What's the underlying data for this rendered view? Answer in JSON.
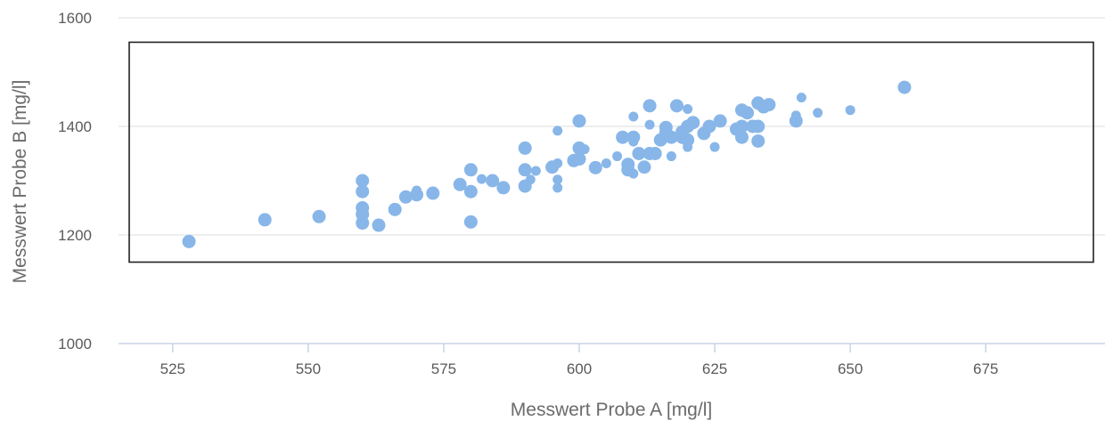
{
  "chart_data": {
    "type": "scatter",
    "title": "",
    "xlabel": "Messwert Probe A [mg/l]",
    "ylabel": "Messwert Probe B [mg/l]",
    "xlim": [
      515,
      697
    ],
    "ylim": [
      1000,
      1600
    ],
    "x_ticks": [
      525,
      550,
      575,
      600,
      625,
      650,
      675
    ],
    "y_ticks": [
      1000,
      1200,
      1400,
      1600
    ],
    "grid": "horizontal",
    "legend": "none",
    "colors": {
      "points": "#88b6e8",
      "grid": "#e3e3e3",
      "axis": "#c8d4e6",
      "box": "#222222"
    },
    "annotation_box": {
      "x": [
        515,
        697
      ],
      "y": [
        1150,
        1555
      ]
    },
    "points": [
      {
        "x": 528,
        "y": 1188,
        "size": "large"
      },
      {
        "x": 542,
        "y": 1228,
        "size": "large"
      },
      {
        "x": 552,
        "y": 1234,
        "size": "large"
      },
      {
        "x": 560,
        "y": 1300,
        "size": "large"
      },
      {
        "x": 560,
        "y": 1280,
        "size": "large"
      },
      {
        "x": 560,
        "y": 1250,
        "size": "large"
      },
      {
        "x": 560,
        "y": 1238,
        "size": "large"
      },
      {
        "x": 560,
        "y": 1222,
        "size": "large"
      },
      {
        "x": 563,
        "y": 1218,
        "size": "large"
      },
      {
        "x": 566,
        "y": 1247,
        "size": "large"
      },
      {
        "x": 568,
        "y": 1270,
        "size": "large"
      },
      {
        "x": 570,
        "y": 1274,
        "size": "large"
      },
      {
        "x": 570,
        "y": 1282,
        "size": "medium"
      },
      {
        "x": 573,
        "y": 1277,
        "size": "large"
      },
      {
        "x": 578,
        "y": 1293,
        "size": "large"
      },
      {
        "x": 580,
        "y": 1320,
        "size": "large"
      },
      {
        "x": 580,
        "y": 1280,
        "size": "large"
      },
      {
        "x": 580,
        "y": 1224,
        "size": "large"
      },
      {
        "x": 582,
        "y": 1303,
        "size": "medium"
      },
      {
        "x": 584,
        "y": 1300,
        "size": "large"
      },
      {
        "x": 586,
        "y": 1287,
        "size": "large"
      },
      {
        "x": 590,
        "y": 1360,
        "size": "large"
      },
      {
        "x": 590,
        "y": 1320,
        "size": "large"
      },
      {
        "x": 590,
        "y": 1290,
        "size": "large"
      },
      {
        "x": 591,
        "y": 1302,
        "size": "medium"
      },
      {
        "x": 592,
        "y": 1318,
        "size": "medium"
      },
      {
        "x": 595,
        "y": 1325,
        "size": "large"
      },
      {
        "x": 596,
        "y": 1392,
        "size": "medium"
      },
      {
        "x": 596,
        "y": 1332,
        "size": "medium"
      },
      {
        "x": 596,
        "y": 1302,
        "size": "medium"
      },
      {
        "x": 596,
        "y": 1287,
        "size": "medium"
      },
      {
        "x": 599,
        "y": 1337,
        "size": "large"
      },
      {
        "x": 600,
        "y": 1410,
        "size": "large"
      },
      {
        "x": 600,
        "y": 1360,
        "size": "large"
      },
      {
        "x": 600,
        "y": 1340,
        "size": "large"
      },
      {
        "x": 601,
        "y": 1358,
        "size": "medium"
      },
      {
        "x": 603,
        "y": 1324,
        "size": "large"
      },
      {
        "x": 605,
        "y": 1332,
        "size": "medium"
      },
      {
        "x": 607,
        "y": 1345,
        "size": "medium"
      },
      {
        "x": 608,
        "y": 1380,
        "size": "large"
      },
      {
        "x": 609,
        "y": 1330,
        "size": "large"
      },
      {
        "x": 609,
        "y": 1320,
        "size": "large"
      },
      {
        "x": 610,
        "y": 1418,
        "size": "medium"
      },
      {
        "x": 610,
        "y": 1380,
        "size": "large"
      },
      {
        "x": 610,
        "y": 1372,
        "size": "medium"
      },
      {
        "x": 610,
        "y": 1313,
        "size": "medium"
      },
      {
        "x": 611,
        "y": 1350,
        "size": "large"
      },
      {
        "x": 612,
        "y": 1325,
        "size": "large"
      },
      {
        "x": 613,
        "y": 1438,
        "size": "large"
      },
      {
        "x": 613,
        "y": 1403,
        "size": "medium"
      },
      {
        "x": 613,
        "y": 1350,
        "size": "large"
      },
      {
        "x": 614,
        "y": 1350,
        "size": "large"
      },
      {
        "x": 615,
        "y": 1375,
        "size": "large"
      },
      {
        "x": 616,
        "y": 1398,
        "size": "large"
      },
      {
        "x": 616,
        "y": 1388,
        "size": "large"
      },
      {
        "x": 617,
        "y": 1345,
        "size": "medium"
      },
      {
        "x": 617,
        "y": 1380,
        "size": "large"
      },
      {
        "x": 618,
        "y": 1438,
        "size": "large"
      },
      {
        "x": 619,
        "y": 1390,
        "size": "large"
      },
      {
        "x": 619,
        "y": 1380,
        "size": "large"
      },
      {
        "x": 620,
        "y": 1432,
        "size": "medium"
      },
      {
        "x": 620,
        "y": 1400,
        "size": "large"
      },
      {
        "x": 620,
        "y": 1375,
        "size": "large"
      },
      {
        "x": 620,
        "y": 1362,
        "size": "medium"
      },
      {
        "x": 621,
        "y": 1407,
        "size": "large"
      },
      {
        "x": 623,
        "y": 1387,
        "size": "large"
      },
      {
        "x": 624,
        "y": 1400,
        "size": "large"
      },
      {
        "x": 625,
        "y": 1362,
        "size": "medium"
      },
      {
        "x": 626,
        "y": 1410,
        "size": "large"
      },
      {
        "x": 629,
        "y": 1395,
        "size": "large"
      },
      {
        "x": 630,
        "y": 1430,
        "size": "large"
      },
      {
        "x": 630,
        "y": 1400,
        "size": "large"
      },
      {
        "x": 630,
        "y": 1380,
        "size": "large"
      },
      {
        "x": 631,
        "y": 1425,
        "size": "large"
      },
      {
        "x": 632,
        "y": 1400,
        "size": "large"
      },
      {
        "x": 633,
        "y": 1443,
        "size": "large"
      },
      {
        "x": 633,
        "y": 1400,
        "size": "large"
      },
      {
        "x": 633,
        "y": 1373,
        "size": "large"
      },
      {
        "x": 634,
        "y": 1436,
        "size": "large"
      },
      {
        "x": 635,
        "y": 1440,
        "size": "large"
      },
      {
        "x": 640,
        "y": 1420,
        "size": "medium"
      },
      {
        "x": 640,
        "y": 1410,
        "size": "large"
      },
      {
        "x": 641,
        "y": 1453,
        "size": "medium"
      },
      {
        "x": 644,
        "y": 1425,
        "size": "medium"
      },
      {
        "x": 650,
        "y": 1430,
        "size": "medium"
      },
      {
        "x": 660,
        "y": 1472,
        "size": "large"
      }
    ]
  }
}
